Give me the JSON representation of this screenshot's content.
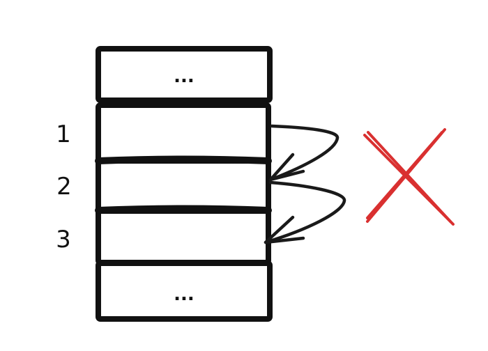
{
  "rows": [
    {
      "label": "",
      "content": "..."
    },
    {
      "label": "1",
      "content": ""
    },
    {
      "label": "2",
      "content": ""
    },
    {
      "label": "3",
      "content": ""
    },
    {
      "label": "",
      "content": "..."
    }
  ],
  "colors": {
    "ink": "#111111",
    "cross": "#d93030",
    "background": "#ffffff"
  },
  "icons": {
    "invalid_mark": "cross-icon"
  }
}
